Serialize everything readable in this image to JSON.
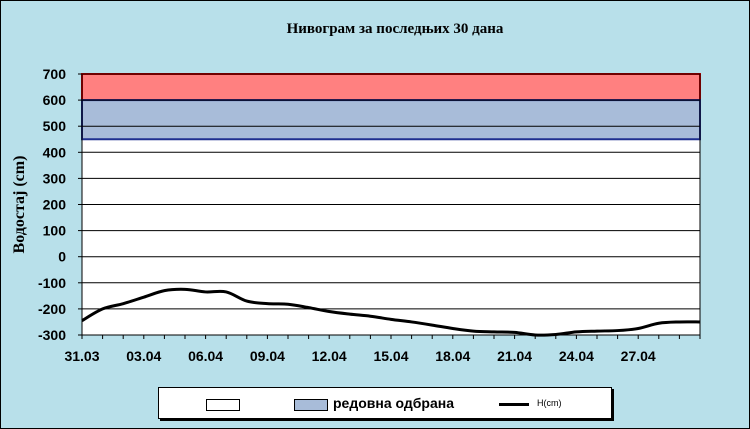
{
  "chart_data": {
    "type": "line",
    "title": "Нивограм за последњих 30 дана",
    "ylabel": "Водостај (cm)",
    "xlabel": "",
    "ylim": [
      -300,
      700
    ],
    "yticks": [
      -300,
      -200,
      -100,
      0,
      100,
      200,
      300,
      400,
      500,
      600,
      700
    ],
    "x_tick_labels": [
      "31.03",
      "03.04",
      "06.04",
      "09.04",
      "12.04",
      "15.04",
      "18.04",
      "21.04",
      "24.04",
      "27.04"
    ],
    "days": 30,
    "bands": [
      {
        "name": "",
        "from": 600,
        "to": 700,
        "color": "#ff8080",
        "edge": "#e00000"
      },
      {
        "name": "редовна одбрана",
        "from": 450,
        "to": 600,
        "color": "#a8bcd9",
        "edge": "#1f2f8f"
      }
    ],
    "series": [
      {
        "name": "H(cm)",
        "color": "#000000",
        "values": [
          -245,
          -200,
          -180,
          -155,
          -130,
          -125,
          -135,
          -135,
          -170,
          -180,
          -182,
          -195,
          -210,
          -220,
          -228,
          -240,
          -250,
          -262,
          -275,
          -285,
          -288,
          -290,
          -300,
          -298,
          -288,
          -285,
          -283,
          -275,
          -255,
          -250
        ]
      }
    ],
    "grid": true,
    "legend": "bottom"
  },
  "legend": {
    "items": [
      {
        "label": ""
      },
      {
        "label": "редовна одбрана"
      },
      {
        "label": "H(cm)"
      }
    ]
  }
}
